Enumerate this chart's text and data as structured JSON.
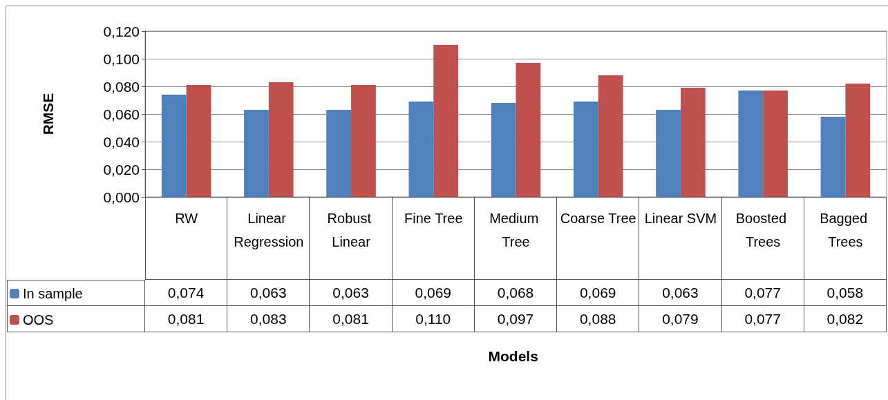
{
  "chart_data": {
    "type": "bar",
    "ylabel": "RMSE",
    "annotations": [
      "Models"
    ],
    "categories": [
      "RW",
      "Linear Regression",
      "Robust Linear",
      "Fine Tree",
      "Medium Tree",
      "Coarse Tree",
      "Linear SVM",
      "Boosted Trees",
      "Bagged Trees"
    ],
    "series": [
      {
        "name": "In sample",
        "color": "#4f81bd",
        "values": [
          0.074,
          0.063,
          0.063,
          0.069,
          0.068,
          0.069,
          0.063,
          0.077,
          0.058
        ],
        "value_labels": [
          "0,074",
          "0,063",
          "0,063",
          "0,069",
          "0,068",
          "0,069",
          "0,063",
          "0,077",
          "0,058"
        ]
      },
      {
        "name": "OOS",
        "color": "#c0504d",
        "values": [
          0.081,
          0.083,
          0.081,
          0.11,
          0.097,
          0.088,
          0.079,
          0.077,
          0.082
        ],
        "value_labels": [
          "0,081",
          "0,083",
          "0,081",
          "0,110",
          "0,097",
          "0,088",
          "0,079",
          "0,077",
          "0,082"
        ]
      }
    ],
    "ylim": [
      0,
      0.12
    ],
    "yticks": [
      {
        "value": 0,
        "label": "0,000"
      },
      {
        "value": 0.02,
        "label": "0,020"
      },
      {
        "value": 0.04,
        "label": "0,040"
      },
      {
        "value": 0.06,
        "label": "0,060"
      },
      {
        "value": 0.08,
        "label": "0,080"
      },
      {
        "value": 0.1,
        "label": "0,100"
      },
      {
        "value": 0.12,
        "label": "0,120"
      }
    ],
    "grid": "y",
    "legend": "bottom"
  }
}
